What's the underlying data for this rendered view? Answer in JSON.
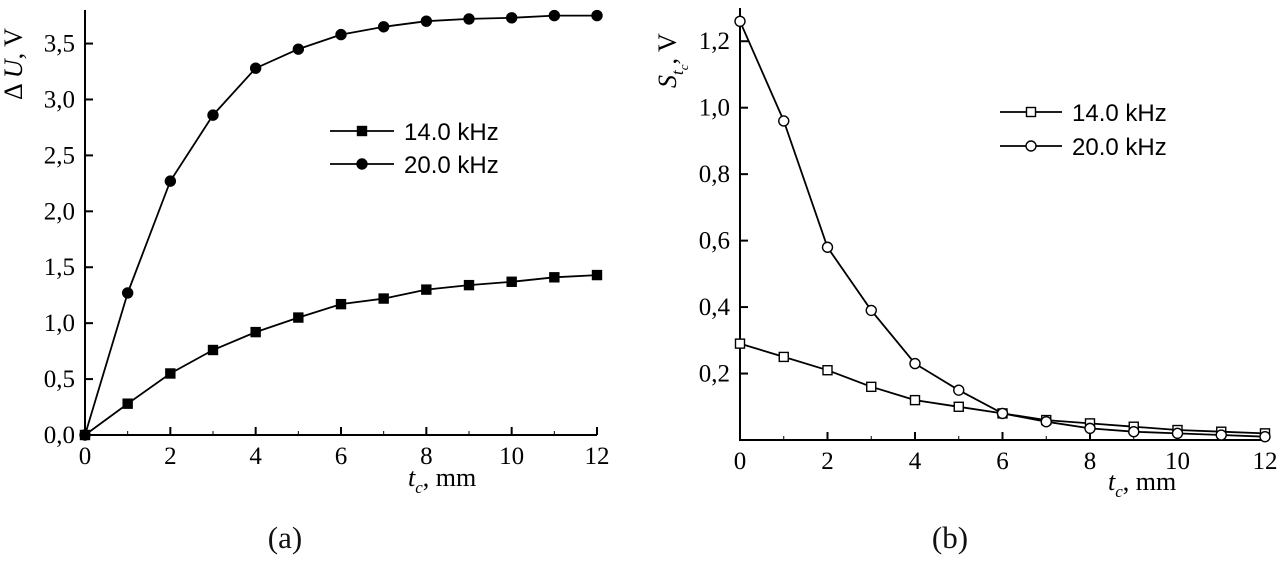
{
  "figure": {
    "background": "#ffffff",
    "line_color": "#000000",
    "captions": {
      "a": "(a)",
      "b": "(b)"
    }
  },
  "chart_data": [
    {
      "id": "a",
      "type": "line",
      "title": "",
      "xlabel": {
        "main": "t",
        "sub": "c",
        "suffix": ", mm"
      },
      "ylabel": {
        "prefix": "Δ ",
        "main": "U",
        "suffix": ", V"
      },
      "xlim": [
        0,
        12
      ],
      "ylim": [
        0,
        3.8
      ],
      "grid": false,
      "legend_position": "inside-middle-right",
      "x_ticks": [
        0,
        2,
        4,
        6,
        8,
        10,
        12
      ],
      "y_ticks": [
        {
          "v": 0.0,
          "label": "0,0"
        },
        {
          "v": 0.5,
          "label": "0,5"
        },
        {
          "v": 1.0,
          "label": "1,0"
        },
        {
          "v": 1.5,
          "label": "1,5"
        },
        {
          "v": 2.0,
          "label": "2,0"
        },
        {
          "v": 2.5,
          "label": "2,5"
        },
        {
          "v": 3.0,
          "label": "3,0"
        },
        {
          "v": 3.5,
          "label": "3,5"
        }
      ],
      "x": [
        0,
        1,
        2,
        3,
        4,
        5,
        6,
        7,
        8,
        9,
        10,
        11,
        12
      ],
      "series": [
        {
          "name": "14.0 kHz",
          "marker": "square-filled",
          "values": [
            0,
            0.28,
            0.55,
            0.76,
            0.92,
            1.05,
            1.17,
            1.22,
            1.3,
            1.34,
            1.37,
            1.41,
            1.43
          ]
        },
        {
          "name": "20.0 kHz",
          "marker": "circle-filled",
          "values": [
            0,
            1.27,
            2.27,
            2.86,
            3.28,
            3.45,
            3.58,
            3.65,
            3.7,
            3.72,
            3.73,
            3.75,
            3.75
          ]
        }
      ]
    },
    {
      "id": "b",
      "type": "line",
      "title": "",
      "xlabel": {
        "main": "t",
        "sub": "c",
        "suffix": ", mm"
      },
      "ylabel": {
        "main": "S",
        "sub": "t",
        "subsub": "c",
        "suffix": ", V"
      },
      "xlim": [
        0,
        12
      ],
      "ylim": [
        0,
        1.3
      ],
      "grid": false,
      "legend_position": "inside-upper-right",
      "x_ticks": [
        0,
        2,
        4,
        6,
        8,
        10,
        12
      ],
      "y_ticks": [
        {
          "v": 0.2,
          "label": "0,2"
        },
        {
          "v": 0.4,
          "label": "0,4"
        },
        {
          "v": 0.6,
          "label": "0,6"
        },
        {
          "v": 0.8,
          "label": "0,8"
        },
        {
          "v": 1.0,
          "label": "1,0"
        },
        {
          "v": 1.2,
          "label": "1,2"
        }
      ],
      "x": [
        0,
        1,
        2,
        3,
        4,
        5,
        6,
        7,
        8,
        9,
        10,
        11,
        12
      ],
      "series": [
        {
          "name": "14.0 kHz",
          "marker": "square-open",
          "values": [
            0.29,
            0.25,
            0.21,
            0.16,
            0.12,
            0.1,
            0.08,
            0.06,
            0.05,
            0.04,
            0.03,
            0.025,
            0.02
          ]
        },
        {
          "name": "20.0 kHz",
          "marker": "circle-open",
          "values": [
            1.26,
            0.96,
            0.58,
            0.39,
            0.23,
            0.15,
            0.08,
            0.055,
            0.035,
            0.025,
            0.02,
            0.015,
            0.01
          ]
        }
      ]
    }
  ]
}
